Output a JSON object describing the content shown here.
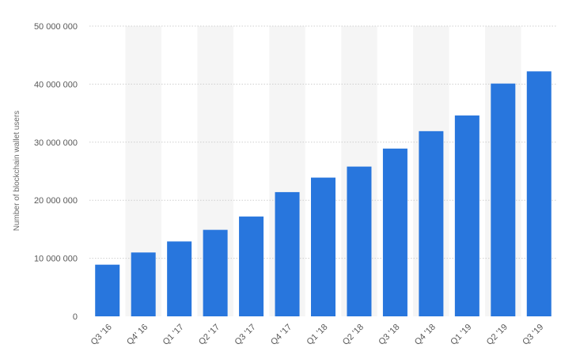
{
  "chart_data": {
    "type": "bar",
    "ylabel": "Number of blockchain wallet users",
    "xlabel": "",
    "ylim": [
      0,
      50000000
    ],
    "yticks": [
      0,
      10000000,
      20000000,
      30000000,
      40000000,
      50000000
    ],
    "ytick_labels": [
      "0",
      "10 000 000",
      "20 000 000",
      "30 000 000",
      "40 000 000",
      "50 000 000"
    ],
    "categories": [
      "Q3 '16",
      "Q4' 16",
      "Q1 '17",
      "Q2 '17",
      "Q3 '17",
      "Q4 '17",
      "Q1 '18",
      "Q2 '18",
      "Q3 '18",
      "Q4 '18",
      "Q1 '19",
      "Q2 '19",
      "Q3 '19"
    ],
    "values": [
      8900000,
      11000000,
      12900000,
      14900000,
      17200000,
      21400000,
      23900000,
      25800000,
      28900000,
      31900000,
      34600000,
      40100000,
      42200000
    ],
    "grid": true,
    "colors": {
      "bar": "#2876dd",
      "band": "#f5f5f5",
      "grid": "#cfcfcf"
    }
  }
}
